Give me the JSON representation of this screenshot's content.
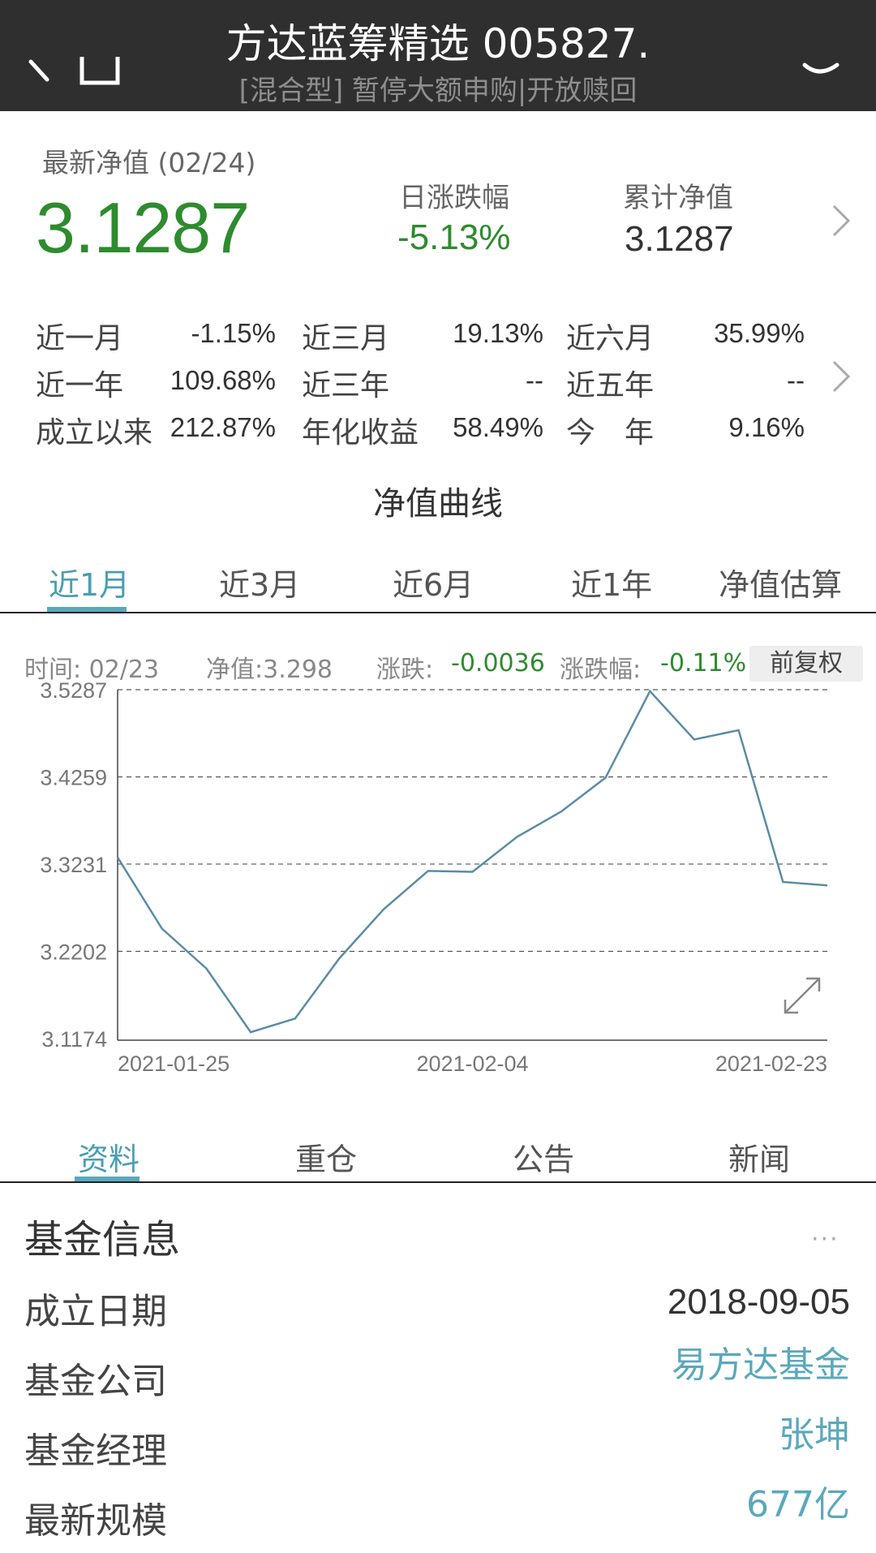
{
  "header": {
    "title": "方达蓝筹精选 005827.",
    "subtitle": "[混合型] 暂停大额申购|开放赎回",
    "icons": [
      "back-icon",
      "box-icon",
      "search-icon"
    ]
  },
  "summary": {
    "nav_label": "最新净值 (02/24)",
    "nav_value": "3.1287",
    "daily_change_label": "日涨跌幅",
    "daily_change_value": "-5.13%",
    "cumulative_label": "累计净值",
    "cumulative_value": "3.1287"
  },
  "returns": [
    {
      "label": "近一月",
      "value": "-1.15%"
    },
    {
      "label": "近三月",
      "value": "19.13%"
    },
    {
      "label": "近六月",
      "value": "35.99%"
    },
    {
      "label": "近一年",
      "value": "109.68%"
    },
    {
      "label": "近三年",
      "value": "--"
    },
    {
      "label": "近五年",
      "value": "--"
    },
    {
      "label": "成立以来",
      "value": "212.87%"
    },
    {
      "label": "年化收益",
      "value": "58.49%"
    },
    {
      "label": "今　年",
      "value": "9.16%"
    }
  ],
  "curve": {
    "title": "净值曲线",
    "tabs": [
      "近1月",
      "近3月",
      "近6月",
      "近1年",
      "净值估算"
    ],
    "active_tab": 0,
    "info": {
      "time": "时间:  02/23",
      "nav": "净值:3.298",
      "change_label": "涨跌:",
      "change_value": "-0.0036",
      "pct_label": "涨跌幅:",
      "pct_value": "-0.11%",
      "adjust_button": "前复权"
    }
  },
  "chart_data": {
    "type": "line",
    "title": "",
    "xlabel": "",
    "ylabel": "",
    "y_ticks": [
      "3.5287",
      "3.4259",
      "3.3231",
      "3.2202",
      "3.1174"
    ],
    "ylim": [
      3.1174,
      3.5287
    ],
    "x_ticks": [
      "2021-01-25",
      "2021-02-04",
      "2021-02-23"
    ],
    "grid": "horizontal dashed",
    "line_color": "#5a8ca6",
    "x": [
      "2021-01-25",
      "2021-01-26",
      "2021-01-27",
      "2021-01-28",
      "2021-01-29",
      "2021-02-01",
      "2021-02-02",
      "2021-02-03",
      "2021-02-04",
      "2021-02-05",
      "2021-02-08",
      "2021-02-09",
      "2021-02-10",
      "2021-02-18",
      "2021-02-19",
      "2021-02-22",
      "2021-02-23"
    ],
    "values": [
      3.331,
      3.247,
      3.2,
      3.125,
      3.141,
      3.212,
      3.27,
      3.315,
      3.314,
      3.355,
      3.385,
      3.425,
      3.527,
      3.47,
      3.481,
      3.302,
      3.298
    ]
  },
  "bottom_tabs": [
    "资料",
    "重仓",
    "公告",
    "新闻"
  ],
  "bottom_active": 0,
  "fund_info": {
    "title": "基金信息",
    "more": "···",
    "rows": [
      {
        "label": "成立日期",
        "value": "2018-09-05"
      },
      {
        "label": "基金公司",
        "value": "易方达基金"
      },
      {
        "label": "基金经理",
        "value": "张坤"
      },
      {
        "label": "最新规模",
        "value": "677亿"
      }
    ]
  }
}
